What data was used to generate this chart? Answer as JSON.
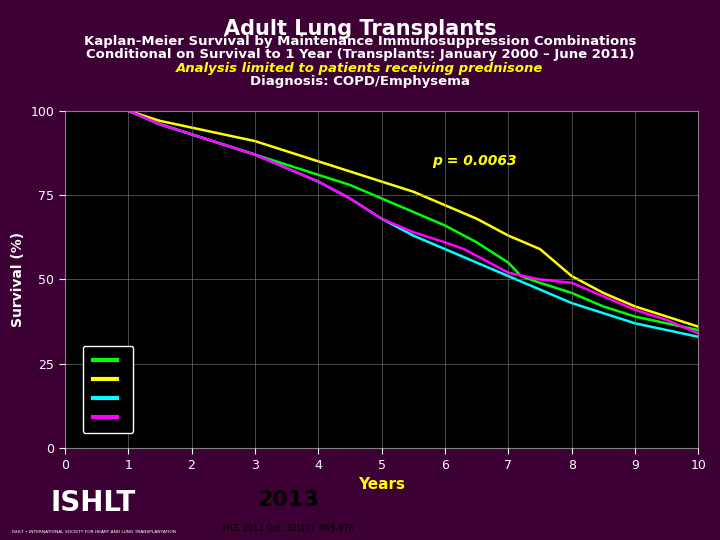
{
  "title": "Adult Lung Transplants",
  "subtitle1": "Kaplan-Meier Survival by Maintenance Immunosuppression Combinations",
  "subtitle2": "Conditional on Survival to 1 Year (Transplants: January 2000 – June 2011)",
  "subtitle3": "Analysis limited to patients receiving prednisone",
  "subtitle4": "Diagnosis: COPD/Emphysema",
  "xlabel": "Years",
  "ylabel": "Survival (%)",
  "pvalue": "p = 0.0063",
  "background_color": "#000000",
  "outer_bg": "#3d0035",
  "title_color": "#ffffff",
  "subtitle12_color": "#ffffff",
  "subtitle3_color": "#ffff00",
  "subtitle4_color": "#ffffff",
  "xlabel_color": "#ffff00",
  "ylabel_color": "#ffffff",
  "tick_color": "#ffffff",
  "grid_color": "#808080",
  "pvalue_color": "#ffff00",
  "xlim": [
    0,
    10
  ],
  "ylim": [
    0,
    100
  ],
  "xticks": [
    0,
    1,
    2,
    3,
    4,
    5,
    6,
    7,
    8,
    9,
    10
  ],
  "yticks": [
    0,
    25,
    50,
    75,
    100
  ],
  "lines": {
    "green": {
      "color": "#00ff00",
      "x": [
        0,
        1.0,
        1.5,
        2.0,
        2.5,
        3.0,
        3.5,
        4.0,
        4.5,
        5.0,
        5.5,
        6.0,
        6.5,
        7.0,
        7.2,
        7.5,
        8.0,
        8.5,
        9.0,
        9.5,
        10.0
      ],
      "y": [
        100,
        100,
        96,
        93,
        90,
        87,
        84,
        81,
        78,
        74,
        70,
        66,
        61,
        55,
        51,
        49,
        46,
        42,
        39,
        37,
        35
      ]
    },
    "yellow": {
      "color": "#ffff00",
      "x": [
        0,
        1.0,
        1.5,
        2.0,
        2.5,
        3.0,
        3.5,
        4.0,
        4.5,
        5.0,
        5.5,
        6.0,
        6.5,
        7.0,
        7.5,
        8.0,
        8.5,
        9.0,
        9.5,
        10.0
      ],
      "y": [
        100,
        100,
        97,
        95,
        93,
        91,
        88,
        85,
        82,
        79,
        76,
        72,
        68,
        63,
        59,
        51,
        46,
        42,
        39,
        36
      ]
    },
    "cyan": {
      "color": "#00ffff",
      "x": [
        0,
        1.0,
        1.5,
        2.0,
        2.5,
        3.0,
        3.5,
        4.0,
        4.5,
        5.0,
        5.3,
        5.5,
        6.0,
        6.5,
        7.0,
        7.5,
        8.0,
        8.5,
        9.0,
        9.5,
        10.0
      ],
      "y": [
        100,
        100,
        96,
        93,
        90,
        87,
        83,
        79,
        74,
        68,
        65,
        63,
        59,
        55,
        51,
        47,
        43,
        40,
        37,
        35,
        33
      ]
    },
    "magenta": {
      "color": "#ff00ff",
      "x": [
        0,
        1.0,
        1.5,
        2.0,
        2.5,
        3.0,
        3.5,
        4.0,
        4.5,
        5.0,
        5.5,
        6.0,
        6.3,
        6.5,
        7.0,
        7.5,
        8.0,
        8.5,
        9.0,
        9.5,
        10.0
      ],
      "y": [
        100,
        100,
        96,
        93,
        90,
        87,
        83,
        79,
        74,
        68,
        64,
        61,
        59,
        57,
        52,
        50,
        49,
        45,
        41,
        38,
        34
      ]
    }
  },
  "footer_text": "2013",
  "footer_sub": "JHLT. 2013 Oct; 32(10): 965-978",
  "ishlt_text": "ISHLT",
  "ishlt_sub": "ISHLT • INTERNATIONAL SOCIETY FOR HEART AND LUNG TRANSPLANTATION"
}
